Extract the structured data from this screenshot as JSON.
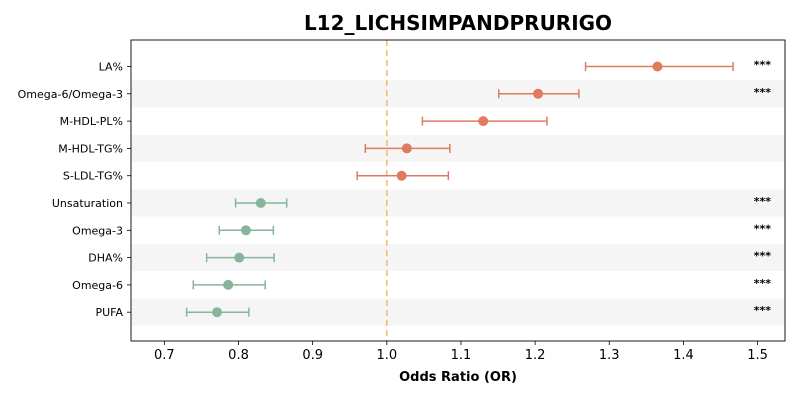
{
  "chart_data": {
    "type": "forest",
    "title": "L12_LICHSIMPANDPRURIGO",
    "xlabel": "Odds Ratio (OR)",
    "ylabel": "",
    "xlim": [
      0.655,
      1.537
    ],
    "x_ticks": [
      0.7,
      0.8,
      0.9,
      1.0,
      1.1,
      1.2,
      1.3,
      1.4,
      1.5
    ],
    "x_tick_labels": [
      "0.7",
      "0.8",
      "0.9",
      "1.0",
      "1.1",
      "1.2",
      "1.3",
      "1.4",
      "1.5"
    ],
    "reference_line": 1.0,
    "reference_line_color": "#f5c27a",
    "colors": {
      "positive": "#e07b5f",
      "negative": "#86b59b",
      "stripe": "#f5f5f5"
    },
    "rows": [
      {
        "label": "LA%",
        "or": 1.365,
        "ci_low": 1.268,
        "ci_high": 1.467,
        "significance": "***"
      },
      {
        "label": "Omega-6/Omega-3",
        "or": 1.204,
        "ci_low": 1.151,
        "ci_high": 1.259,
        "significance": "***"
      },
      {
        "label": "M-HDL-PL%",
        "or": 1.13,
        "ci_low": 1.048,
        "ci_high": 1.216,
        "significance": ""
      },
      {
        "label": "M-HDL-TG%",
        "or": 1.027,
        "ci_low": 0.971,
        "ci_high": 1.085,
        "significance": ""
      },
      {
        "label": "S-LDL-TG%",
        "or": 1.02,
        "ci_low": 0.96,
        "ci_high": 1.083,
        "significance": ""
      },
      {
        "label": "Unsaturation",
        "or": 0.83,
        "ci_low": 0.796,
        "ci_high": 0.865,
        "significance": "***"
      },
      {
        "label": "Omega-3",
        "or": 0.81,
        "ci_low": 0.774,
        "ci_high": 0.847,
        "significance": "***"
      },
      {
        "label": "DHA%",
        "or": 0.801,
        "ci_low": 0.757,
        "ci_high": 0.848,
        "significance": "***"
      },
      {
        "label": "Omega-6",
        "or": 0.786,
        "ci_low": 0.739,
        "ci_high": 0.836,
        "significance": "***"
      },
      {
        "label": "PUFA",
        "or": 0.771,
        "ci_low": 0.73,
        "ci_high": 0.814,
        "significance": "***"
      }
    ]
  }
}
